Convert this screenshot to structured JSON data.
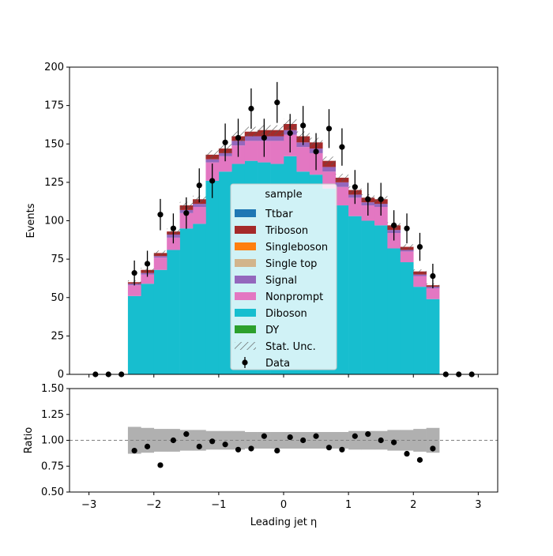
{
  "chart_data": [
    {
      "type": "bar",
      "stacked": true,
      "histogram": true,
      "xlabel": "Leading jet  η",
      "ylabel": "Events",
      "xlim": [
        -3.3,
        3.3
      ],
      "ylim": [
        0,
        200
      ],
      "yticks": [
        0,
        25,
        50,
        75,
        100,
        125,
        150,
        175,
        200
      ],
      "xticks": [
        -3,
        -2,
        -1,
        0,
        1,
        2,
        3
      ],
      "grid": false,
      "bin_edges": [
        -2.4,
        -2.2,
        -2.0,
        -1.8,
        -1.6,
        -1.4,
        -1.2,
        -1.0,
        -0.8,
        -0.6,
        -0.4,
        -0.2,
        0.0,
        0.2,
        0.4,
        0.6,
        0.8,
        1.0,
        1.2,
        1.4,
        1.6,
        1.8,
        2.0,
        2.2,
        2.4
      ],
      "series": [
        {
          "name": "DY",
          "color": "#2ca02c",
          "values": [
            0,
            0,
            0,
            0,
            0,
            0,
            0,
            0,
            0,
            0,
            0,
            0,
            0,
            0,
            0,
            0,
            0,
            0,
            0,
            0,
            0,
            0,
            0,
            0
          ]
        },
        {
          "name": "Diboson",
          "color": "#17becf",
          "values": [
            51,
            59,
            68,
            81,
            95,
            98,
            126,
            132,
            137,
            139,
            138,
            137,
            142,
            132,
            130,
            121,
            110,
            103,
            100,
            97,
            82,
            73,
            57,
            49
          ]
        },
        {
          "name": "Nonprompt",
          "color": "#e377c2",
          "values": [
            7,
            6,
            8,
            8,
            10,
            11,
            12,
            10,
            12,
            13,
            14,
            15,
            14,
            16,
            14,
            11,
            12,
            12,
            10,
            12,
            10,
            7,
            7,
            7
          ]
        },
        {
          "name": "Signal",
          "color": "#9467bd",
          "values": [
            1,
            1,
            1,
            2,
            2,
            2,
            2,
            2,
            3,
            3,
            3,
            3,
            3,
            3,
            3,
            3,
            3,
            2,
            2,
            2,
            2,
            1,
            1,
            1
          ]
        },
        {
          "name": "Single top",
          "color": "#d2b48c",
          "values": [
            0,
            0,
            0,
            0,
            0,
            0,
            0,
            0,
            0,
            0,
            0,
            0,
            0,
            0,
            0,
            0,
            0,
            0,
            0,
            0,
            0,
            0,
            0,
            0
          ]
        },
        {
          "name": "Singleboson",
          "color": "#ff7f0e",
          "values": [
            0,
            0,
            0,
            0,
            0,
            0,
            0,
            0,
            0,
            0,
            0,
            0,
            0,
            0,
            0,
            0,
            0,
            0,
            0,
            0,
            0,
            0,
            0,
            0
          ]
        },
        {
          "name": "Triboson",
          "color": "#a52a2a",
          "values": [
            1,
            2,
            2,
            2,
            3,
            3,
            3,
            3,
            3,
            3,
            4,
            4,
            4,
            4,
            4,
            4,
            3,
            3,
            3,
            3,
            3,
            2,
            2,
            1
          ]
        },
        {
          "name": "Ttbar",
          "color": "#1f77b4",
          "values": [
            0,
            0,
            0,
            0,
            0,
            0,
            0,
            0,
            0,
            0,
            0,
            0,
            0,
            0,
            0,
            0,
            0,
            0,
            0,
            0,
            0,
            0,
            0,
            0
          ]
        }
      ],
      "stat_unc": {
        "name": "Stat. Unc.",
        "relative": 0.02
      },
      "data": {
        "name": "Data",
        "x": [
          -2.9,
          -2.7,
          -2.5,
          -2.3,
          -2.1,
          -1.9,
          -1.7,
          -1.5,
          -1.3,
          -1.1,
          -0.9,
          -0.7,
          -0.5,
          -0.3,
          -0.1,
          0.1,
          0.3,
          0.5,
          0.7,
          0.9,
          1.1,
          1.3,
          1.5,
          1.7,
          1.9,
          2.1,
          2.3,
          2.5,
          2.7,
          2.9
        ],
        "y": [
          0,
          0,
          0,
          66,
          72,
          104,
          95,
          105,
          123,
          126,
          151,
          154,
          173,
          154,
          177,
          157,
          162,
          145,
          160,
          148,
          122,
          114,
          114,
          97,
          95,
          83,
          64,
          0,
          0,
          0
        ]
      },
      "legend": {
        "title": "sample",
        "placement": "center"
      }
    },
    {
      "type": "scatter",
      "xlabel": "Leading jet  η",
      "ylabel": "Ratio",
      "xlim": [
        -3.3,
        3.3
      ],
      "ylim": [
        0.5,
        1.5
      ],
      "yticks": [
        "0.50",
        "0.75",
        "1.00",
        "1.25",
        "1.50"
      ],
      "xticks": [
        -3,
        -2,
        -1,
        0,
        1,
        2,
        3
      ],
      "reference_line": 1.0,
      "unc_band_halfwidth": [
        0.13,
        0.12,
        0.11,
        0.11,
        0.1,
        0.1,
        0.09,
        0.09,
        0.09,
        0.08,
        0.08,
        0.08,
        0.08,
        0.08,
        0.08,
        0.08,
        0.08,
        0.09,
        0.09,
        0.09,
        0.1,
        0.1,
        0.11,
        0.12
      ],
      "x": [
        -2.3,
        -2.1,
        -1.9,
        -1.7,
        -1.5,
        -1.3,
        -1.1,
        -0.9,
        -0.7,
        -0.5,
        -0.3,
        -0.1,
        0.1,
        0.3,
        0.5,
        0.7,
        0.9,
        1.1,
        1.3,
        1.5,
        1.7,
        1.9,
        2.1,
        2.3
      ],
      "y": [
        0.9,
        0.94,
        0.76,
        1.0,
        1.06,
        0.94,
        0.99,
        0.96,
        0.91,
        0.92,
        1.04,
        0.9,
        1.03,
        1.0,
        1.04,
        0.93,
        0.91,
        1.04,
        1.06,
        1.0,
        0.98,
        0.87,
        0.81,
        0.92
      ]
    }
  ]
}
